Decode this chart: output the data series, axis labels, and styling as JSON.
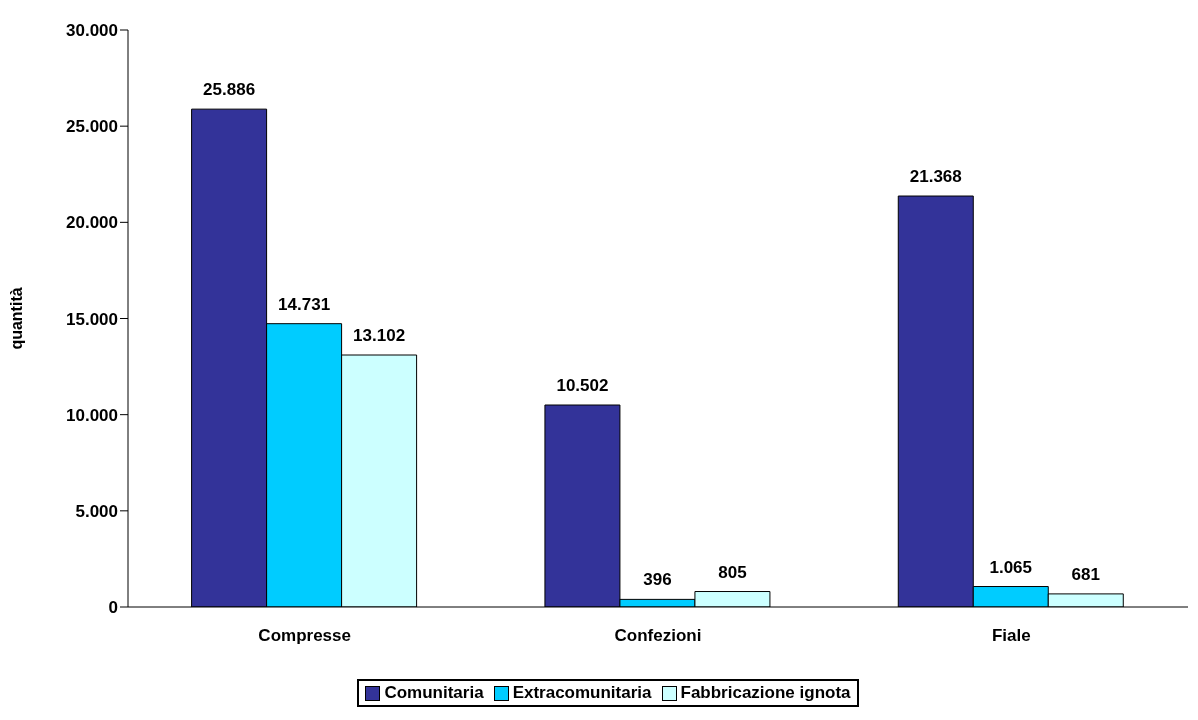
{
  "chart_data": {
    "type": "bar",
    "ylabel": "quantità",
    "categories": [
      "Compresse",
      "Confezioni",
      "Fiale"
    ],
    "series": [
      {
        "name": "Comunitaria",
        "color": "#333399",
        "values": [
          25886,
          10502,
          21368
        ],
        "value_labels": [
          "25.886",
          "10.502",
          "21.368"
        ]
      },
      {
        "name": "Extracomunitaria",
        "color": "#00ccff",
        "values": [
          14731,
          396,
          1065
        ],
        "value_labels": [
          "14.731",
          "396",
          "1.065"
        ]
      },
      {
        "name": "Fabbricazione ignota",
        "color": "#ccffff",
        "values": [
          13102,
          805,
          681
        ],
        "value_labels": [
          "13.102",
          "805",
          "681"
        ]
      }
    ],
    "ylim": [
      0,
      30000
    ],
    "yticks": [
      {
        "value": 0,
        "label": "0"
      },
      {
        "value": 5000,
        "label": "5.000"
      },
      {
        "value": 10000,
        "label": "10.000"
      },
      {
        "value": 15000,
        "label": "15.000"
      },
      {
        "value": 20000,
        "label": "20.000"
      },
      {
        "value": 25000,
        "label": "25.000"
      },
      {
        "value": 30000,
        "label": "30.000"
      }
    ],
    "grid": false,
    "legend": "bottom"
  }
}
